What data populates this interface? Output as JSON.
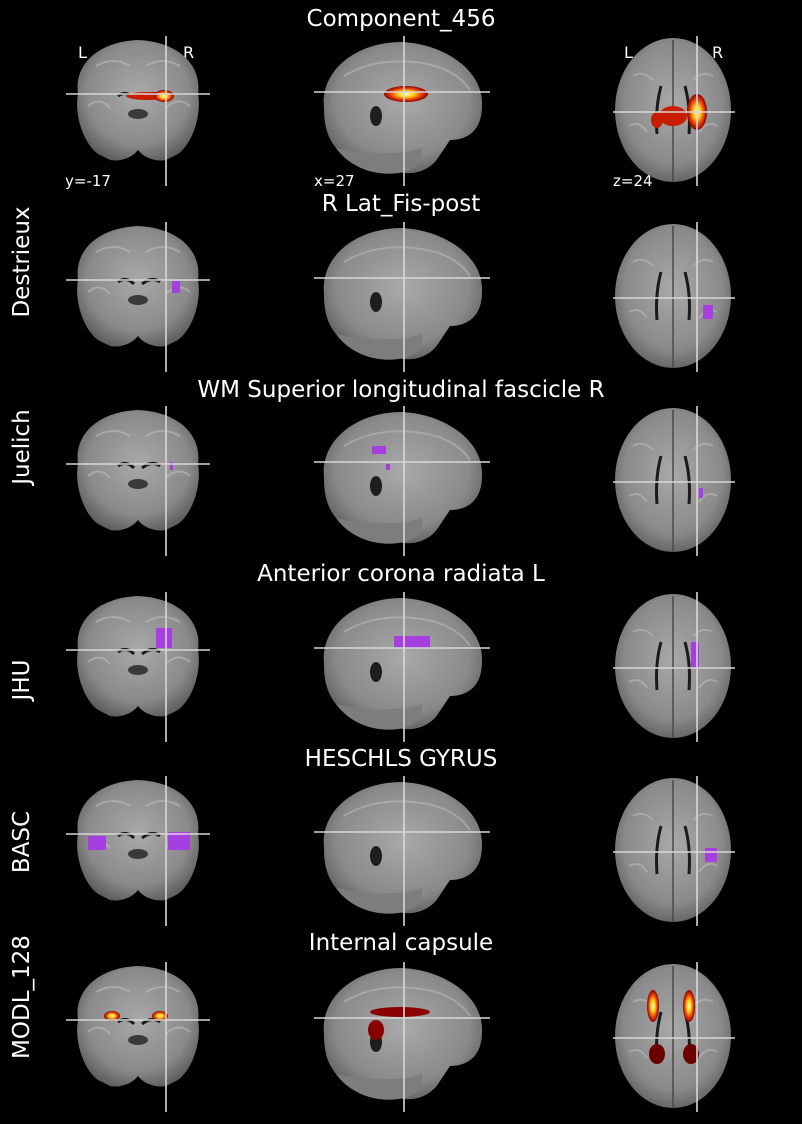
{
  "figure": {
    "top_title": "Component_456",
    "orientation": {
      "left": "L",
      "right": "R"
    },
    "coords": {
      "coronal": "y=-17",
      "sagittal": "x=27",
      "axial": "z=24"
    }
  },
  "rows": [
    {
      "label": "",
      "title": "Component_456",
      "overlay": "hot"
    },
    {
      "label": "Destrieux",
      "title": "R Lat_Fis-post",
      "overlay": "#a53fe0"
    },
    {
      "label": "Juelich",
      "title": "WM Superior longitudinal fascicle R",
      "overlay": "#a53fe0"
    },
    {
      "label": "JHU",
      "title": "Anterior corona radiata L",
      "overlay": "#a53fe0"
    },
    {
      "label": "BASC",
      "title": "HESCHLS GYRUS",
      "overlay": "#a53fe0"
    },
    {
      "label": "MODL_128",
      "title": "Internal capsule",
      "overlay": "hot"
    }
  ],
  "colors": {
    "background": "#000000",
    "crosshair": "#d8d8d8",
    "atlas_overlay": "#a53fe0"
  }
}
